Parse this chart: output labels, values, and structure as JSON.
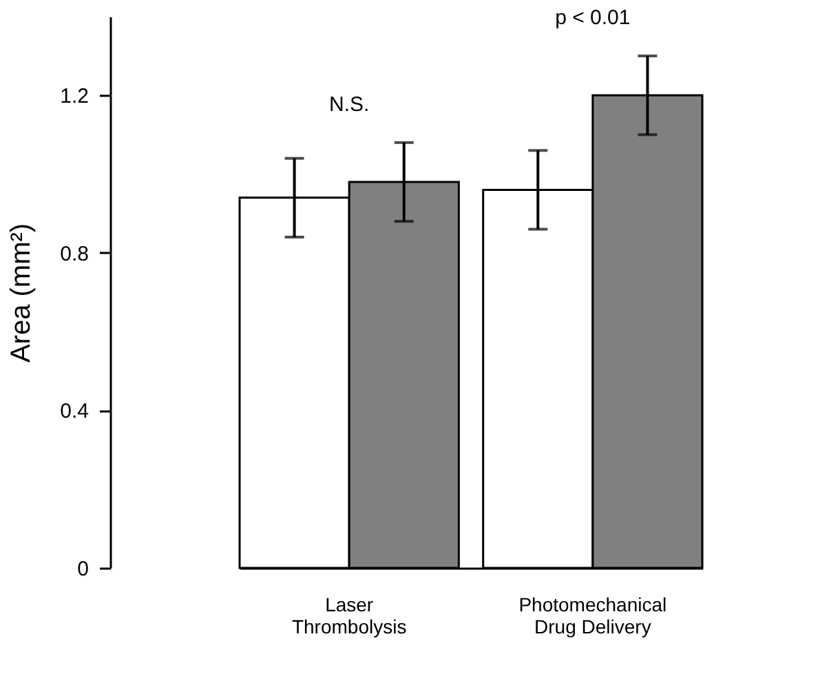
{
  "chart_data": {
    "type": "bar",
    "ylabel": "Area (mm²)",
    "categories": [
      "Laser Thrombolysis",
      "Photomechanical Drug Delivery"
    ],
    "series": [
      {
        "color": "#ffffff",
        "values": [
          0.94,
          0.96
        ],
        "errors": [
          0.1,
          0.1
        ]
      },
      {
        "color": "#808080",
        "values": [
          0.98,
          1.2
        ],
        "errors": [
          0.1,
          0.1
        ]
      }
    ],
    "ylim": [
      0,
      1.4
    ],
    "yticks": [
      0,
      0.4,
      0.8,
      1.2
    ],
    "grid": false,
    "legend": false,
    "annotations": [
      "N.S.",
      "p < 0.01"
    ]
  }
}
